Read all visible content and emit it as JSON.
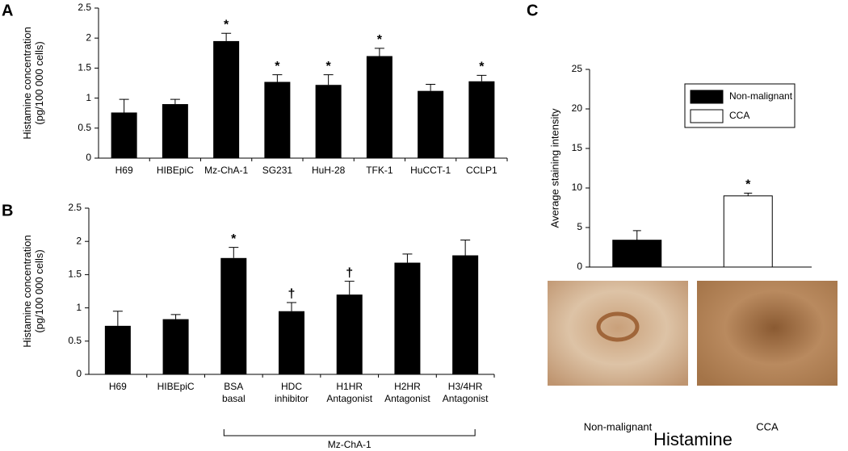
{
  "chart_data": [
    {
      "type": "bar",
      "panel": "A",
      "ylabel": [
        "Histamine concentration",
        "(pg/100 000 cells)"
      ],
      "categories": [
        [
          "H69"
        ],
        [
          "HIBEpiC"
        ],
        [
          "Mz-ChA-1"
        ],
        [
          "SG231"
        ],
        [
          "HuH-28"
        ],
        [
          "TFK-1"
        ],
        [
          "HuCCT-1"
        ],
        [
          "CCLP1"
        ]
      ],
      "values": [
        0.76,
        0.9,
        1.95,
        1.27,
        1.22,
        1.7,
        1.12,
        1.28
      ],
      "errors": [
        0.22,
        0.08,
        0.13,
        0.12,
        0.17,
        0.13,
        0.11,
        0.1
      ],
      "markers": [
        null,
        null,
        "*",
        "*",
        "*",
        "*",
        null,
        "*"
      ],
      "color": "#000000",
      "ylim": [
        0,
        2.5
      ],
      "yticks": [
        0,
        0.5,
        1,
        1.5,
        2,
        2.5
      ]
    },
    {
      "type": "bar",
      "panel": "B",
      "ylabel": [
        "Histamine concentration",
        "(pg/100 000 cells)"
      ],
      "categories": [
        [
          "H69"
        ],
        [
          "HIBEpiC"
        ],
        [
          "BSA",
          "basal"
        ],
        [
          "HDC",
          "inhibitor"
        ],
        [
          "H1HR",
          "Antagonist"
        ],
        [
          "H2HR",
          "Antagonist"
        ],
        [
          "H3/4HR",
          "Antagonist"
        ]
      ],
      "values": [
        0.73,
        0.83,
        1.75,
        0.95,
        1.2,
        1.68,
        1.79
      ],
      "errors": [
        0.22,
        0.07,
        0.16,
        0.13,
        0.2,
        0.13,
        0.23
      ],
      "markers": [
        null,
        null,
        "*",
        "†",
        "†",
        null,
        null
      ],
      "group": {
        "label": "Mz-ChA-1",
        "from": 2,
        "to": 6
      },
      "color": "#000000",
      "ylim": [
        0,
        2.5
      ],
      "yticks": [
        0,
        0.5,
        1,
        1.5,
        2,
        2.5
      ]
    },
    {
      "type": "grouped",
      "panel": "C",
      "ylabel": [
        "Average staining intensity"
      ],
      "series": [
        {
          "name": "Non-malignant",
          "color": "#000000",
          "values": [
            3.4
          ],
          "errors": [
            1.2
          ],
          "markers": [
            null
          ]
        },
        {
          "name": "CCA",
          "color": "#ffffff",
          "values": [
            9.0
          ],
          "errors": [
            0.35
          ],
          "markers": [
            "*"
          ]
        }
      ],
      "ylim": [
        0,
        25
      ],
      "yticks": [
        0,
        5,
        10,
        15,
        20,
        25
      ],
      "legend": "top-right",
      "images": [
        "Non-malignant",
        "CCA"
      ],
      "caption": "Histamine"
    }
  ]
}
